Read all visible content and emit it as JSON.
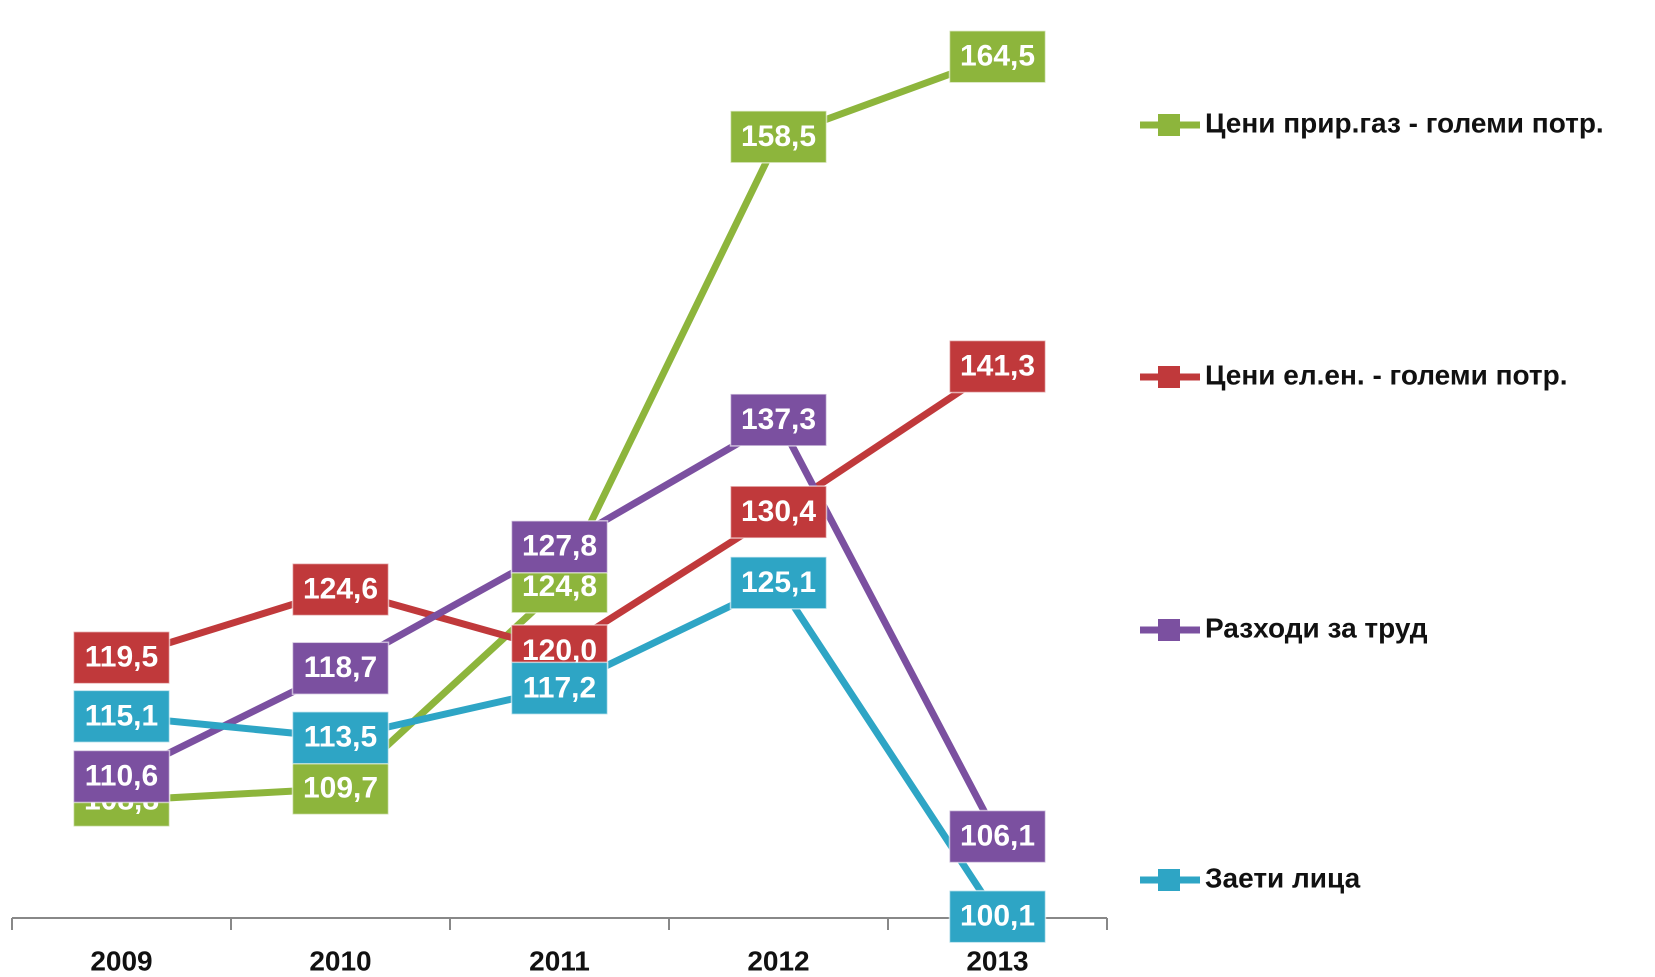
{
  "chart_data": {
    "type": "line",
    "categories": [
      "2009",
      "2010",
      "2011",
      "2012",
      "2013"
    ],
    "ylim": [
      100,
      168
    ],
    "series": [
      {
        "name": "Цени прир.газ - големи потр.",
        "color": "#8db53c",
        "values": [
          108.8,
          109.7,
          124.8,
          158.5,
          164.5
        ],
        "value_labels": [
          "108,8",
          "109,7",
          "124,8",
          "158,5",
          "164,5"
        ]
      },
      {
        "name": "Цени ел.ен. - големи потр.",
        "color": "#c0393b",
        "values": [
          119.5,
          124.6,
          120.0,
          130.4,
          141.3
        ],
        "value_labels": [
          "119,5",
          "124,6",
          "120,0",
          "130,4",
          "141,3"
        ]
      },
      {
        "name": "Разходи за труд",
        "color": "#7b50a0",
        "values": [
          110.6,
          118.7,
          127.8,
          137.3,
          106.1
        ],
        "value_labels": [
          "110,6",
          "118,7",
          "127,8",
          "137,3",
          "106,1"
        ]
      },
      {
        "name": "Заети лица",
        "color": "#2ea5c5",
        "values": [
          115.1,
          113.5,
          117.2,
          125.1,
          100.1
        ],
        "value_labels": [
          "115,1",
          "113,5",
          "117,2",
          "125,1",
          "100,1"
        ]
      }
    ],
    "legend": "right"
  }
}
